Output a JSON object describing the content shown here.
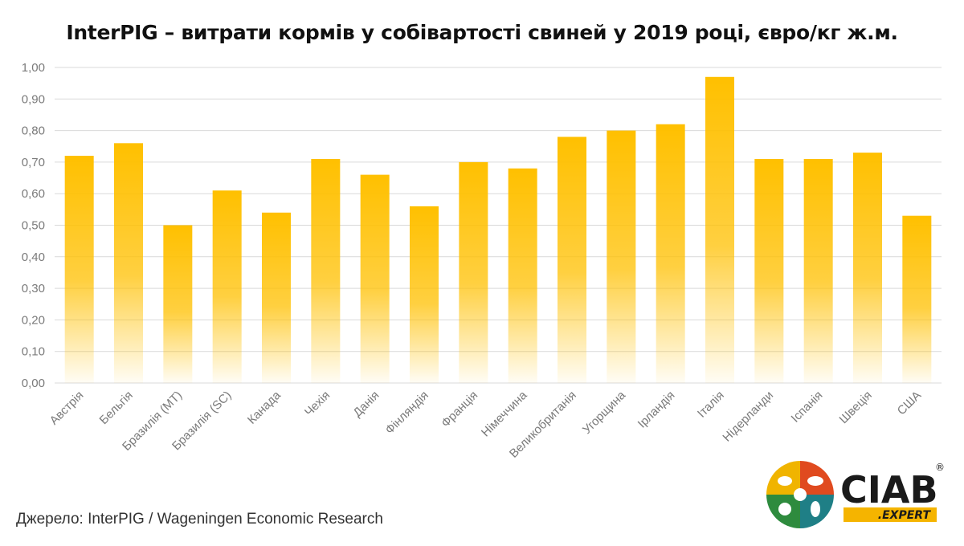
{
  "chart_data": {
    "type": "bar",
    "title": "InterPIG – витрати кормів у собівартості свиней у 2019 році, євро/кг ж.м.",
    "categories": [
      "Австрія",
      "Бельгія",
      "Бразилія (MT)",
      "Бразилія (SC)",
      "Канада",
      "Чехія",
      "Данія",
      "Фінляндія",
      "Франція",
      "Німеччина",
      "Великобританія",
      "Угорщина",
      "Ірландія",
      "Італія",
      "Нідерланди",
      "Іспанія",
      "Швеція",
      "США"
    ],
    "values": [
      0.72,
      0.76,
      0.5,
      0.61,
      0.54,
      0.71,
      0.66,
      0.56,
      0.7,
      0.68,
      0.78,
      0.8,
      0.82,
      0.97,
      0.71,
      0.71,
      0.73,
      0.53
    ],
    "ylim": [
      0,
      1.0
    ],
    "yticks": [
      "0,00",
      "0,10",
      "0,20",
      "0,30",
      "0,40",
      "0,50",
      "0,60",
      "0,70",
      "0,80",
      "0,90",
      "1,00"
    ],
    "xlabel": "",
    "ylabel": "",
    "grid": true,
    "colors": {
      "bar": "#FFC000",
      "grid": "#d9d9d9"
    }
  },
  "source": "Джерело: InterPIG / Wageningen Economic Research",
  "logo": {
    "name": "CIAB",
    "sub": ".EXPERT",
    "reg": "®"
  }
}
